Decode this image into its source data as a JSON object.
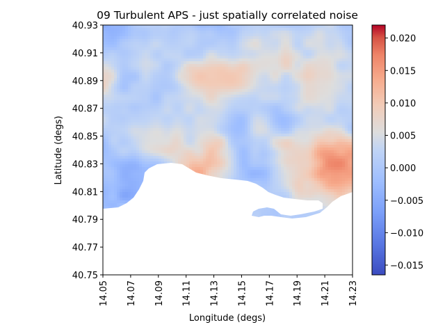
{
  "chart_data": {
    "type": "heatmap",
    "title": "09 Turbulent APS - just spatially correlated noise",
    "xlabel": "Longitude (degs)",
    "ylabel": "Latitude (degs)",
    "xlim": [
      14.05,
      14.23
    ],
    "ylim": [
      40.75,
      40.93
    ],
    "x_ticks": [
      "14.05",
      "14.07",
      "14.09",
      "14.11",
      "14.13",
      "14.15",
      "14.17",
      "14.19",
      "14.21",
      "14.23"
    ],
    "y_ticks": [
      "40.93",
      "40.91",
      "40.89",
      "40.87",
      "40.85",
      "40.83",
      "40.81",
      "40.79",
      "40.77",
      "40.75"
    ],
    "colorbar": {
      "colormap": "coolwarm",
      "vmin": -0.0165,
      "vmax": 0.022,
      "ticks": [
        "0.020",
        "0.015",
        "0.010",
        "0.005",
        "0.000",
        "−0.005",
        "−0.010",
        "−0.015"
      ]
    },
    "grid": false,
    "colors": {
      "cold": "#3b4cc0",
      "neutral": "#dddddd",
      "warm": "#b40426",
      "no_data": "#ffffff"
    }
  }
}
